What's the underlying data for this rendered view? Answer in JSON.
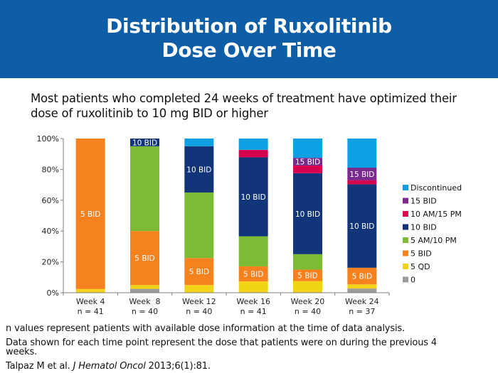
{
  "header": {
    "title_line1": "Distribution of Ruxolitinib",
    "title_line2": "Dose Over Time"
  },
  "subtitle": "Most patients who completed 24 weeks of treatment have optimized their dose of ruxolitinib to 10 mg BID or higher",
  "footnotes": {
    "line1": "n values represent patients with available dose information at the time of data analysis.",
    "line2": "Data shown for each time point represent the dose that patients were on during the previous 4 weeks.",
    "ref_authors": "Talpaz M et al. ",
    "ref_journal": "J Hematol Oncol",
    "ref_rest": " 2013;6(1):81."
  },
  "chart_data": {
    "type": "bar",
    "stacked": true,
    "title": "",
    "xlabel": "",
    "ylabel": "",
    "ylim": [
      0,
      100
    ],
    "y_ticks": [
      "0%",
      "20%",
      "40%",
      "60%",
      "80%",
      "100%"
    ],
    "y_tick_values": [
      0,
      20,
      40,
      60,
      80,
      100
    ],
    "grid": false,
    "legend_position": "right",
    "categories": [
      "Week 4",
      "Week  8",
      "Week 12",
      "Week 16",
      "Week 20",
      "Week 24"
    ],
    "n_labels": [
      "n = 41",
      "n = 40",
      "n = 40",
      "n = 41",
      "n = 40",
      "n = 37"
    ],
    "series": [
      {
        "name": "0",
        "color": "#9b9b9b",
        "values": [
          0,
          2.5,
          0,
          0,
          0,
          2.7
        ]
      },
      {
        "name": "5 QD",
        "color": "#f2d417",
        "values": [
          2.4,
          2.5,
          5,
          7.3,
          7.5,
          2.7
        ]
      },
      {
        "name": "5 BID",
        "color": "#f5821f",
        "values": [
          97.6,
          35,
          17.5,
          9.8,
          7.5,
          10.8
        ]
      },
      {
        "name": "5 AM/10 PM",
        "color": "#7dbb34",
        "values": [
          0,
          55,
          42.5,
          19.5,
          10,
          0
        ]
      },
      {
        "name": "10 BID",
        "color": "#12357a",
        "values": [
          0,
          5,
          30,
          51.2,
          52.5,
          54.1
        ]
      },
      {
        "name": "10 AM/15 PM",
        "color": "#d4044f",
        "values": [
          0,
          0,
          0,
          4.9,
          5,
          2.7
        ]
      },
      {
        "name": "15 BID",
        "color": "#7a2a8e",
        "values": [
          0,
          0,
          0,
          0,
          5,
          8.1
        ]
      },
      {
        "name": "Discontinued",
        "color": "#0da1e3",
        "values": [
          0,
          0,
          5,
          7.3,
          12.5,
          18.9
        ]
      }
    ],
    "legend_order": [
      "Discontinued",
      "15 BID",
      "10 AM/15 PM",
      "10 BID",
      "5 AM/10 PM",
      "5 BID",
      "5 QD",
      "0"
    ],
    "segment_labels": [
      {
        "category": 0,
        "series": "5 BID",
        "text": "5 BID"
      },
      {
        "category": 1,
        "series": "5 BID",
        "text": "5 BID"
      },
      {
        "category": 1,
        "series": "10 BID",
        "text": "10 BID"
      },
      {
        "category": 2,
        "series": "5 BID",
        "text": "5 BID"
      },
      {
        "category": 2,
        "series": "10 BID",
        "text": "10 BID"
      },
      {
        "category": 3,
        "series": "5 BID",
        "text": "5 BID"
      },
      {
        "category": 3,
        "series": "10 BID",
        "text": "10 BID"
      },
      {
        "category": 4,
        "series": "5 BID",
        "text": "5 BID"
      },
      {
        "category": 4,
        "series": "10 BID",
        "text": "10 BID"
      },
      {
        "category": 4,
        "series": "15 BID",
        "text": "15 BID"
      },
      {
        "category": 5,
        "series": "5 BID",
        "text": "5 BID"
      },
      {
        "category": 5,
        "series": "10 BID",
        "text": "10 BID"
      },
      {
        "category": 5,
        "series": "15 BID",
        "text": "15 BID"
      }
    ]
  }
}
